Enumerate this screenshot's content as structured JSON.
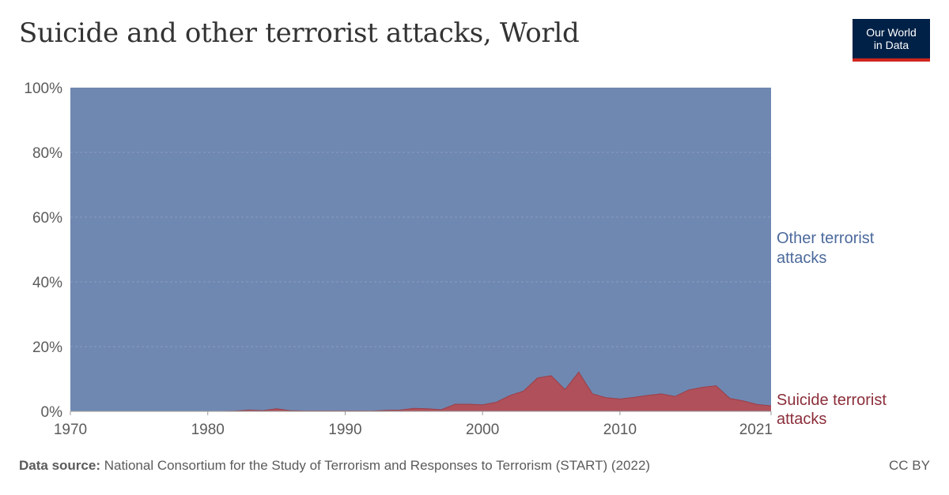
{
  "header": {
    "title": "Suicide and other terrorist attacks, World",
    "logo_line1": "Our World",
    "logo_line2": "in Data"
  },
  "footer": {
    "source_label": "Data source:",
    "source_text": "National Consortium for the Study of Terrorism and Responses to Terrorism (START) (2022)",
    "license": "CC BY"
  },
  "colors": {
    "other": "#6f88b1",
    "suicide": "#b0505a",
    "other_label": "#4c6a9c",
    "suicide_label": "#8b2e3a",
    "brand": "#002147",
    "brand_accent": "#ce261e"
  },
  "chart_data": {
    "type": "area",
    "stacked_percent": true,
    "title": "Suicide and other terrorist attacks, World",
    "xlabel": "",
    "ylabel": "",
    "xlim": [
      1970,
      2021
    ],
    "ylim": [
      0,
      100
    ],
    "y_ticks": [
      "0%",
      "20%",
      "40%",
      "60%",
      "80%",
      "100%"
    ],
    "x_ticks": [
      "1970",
      "1980",
      "1990",
      "2000",
      "2010",
      "2021"
    ],
    "grid": true,
    "legend_placement": "right, inline labels",
    "x": [
      1970,
      1971,
      1972,
      1973,
      1974,
      1975,
      1976,
      1977,
      1978,
      1979,
      1980,
      1981,
      1982,
      1983,
      1984,
      1985,
      1986,
      1987,
      1988,
      1989,
      1990,
      1991,
      1992,
      1993,
      1994,
      1995,
      1996,
      1997,
      1998,
      1999,
      2000,
      2001,
      2002,
      2003,
      2004,
      2005,
      2006,
      2007,
      2008,
      2009,
      2010,
      2011,
      2012,
      2013,
      2014,
      2015,
      2016,
      2017,
      2018,
      2019,
      2020,
      2021
    ],
    "series": [
      {
        "name": "Suicide terrorist attacks",
        "values": [
          0,
          0,
          0,
          0,
          0,
          0,
          0,
          0,
          0,
          0,
          0,
          0,
          0.1,
          0.4,
          0.2,
          0.8,
          0.2,
          0.1,
          0.1,
          0.1,
          0.1,
          0.1,
          0.1,
          0.3,
          0.4,
          0.9,
          0.8,
          0.5,
          2.2,
          2.2,
          2.0,
          2.8,
          4.9,
          6.3,
          10.3,
          11.0,
          6.7,
          12.1,
          5.4,
          4.2,
          3.8,
          4.3,
          4.9,
          5.4,
          4.6,
          6.6,
          7.4,
          7.9,
          4.0,
          3.2,
          2.1,
          1.7
        ]
      },
      {
        "name": "Other terrorist attacks",
        "values": [
          100,
          100,
          100,
          100,
          100,
          100,
          100,
          100,
          100,
          100,
          100,
          100,
          99.9,
          99.6,
          99.8,
          99.2,
          99.8,
          99.9,
          99.9,
          99.9,
          99.9,
          99.9,
          99.9,
          99.7,
          99.6,
          99.1,
          99.2,
          99.5,
          97.8,
          97.8,
          98.0,
          97.2,
          95.1,
          93.7,
          89.7,
          89.0,
          93.3,
          87.9,
          94.6,
          95.8,
          96.2,
          95.7,
          95.1,
          94.6,
          95.4,
          93.4,
          92.6,
          92.1,
          96.0,
          96.8,
          97.9,
          98.3
        ]
      }
    ],
    "series_labels": {
      "other": [
        "Other terrorist",
        "attacks"
      ],
      "suicide": [
        "Suicide terrorist",
        "attacks"
      ]
    }
  }
}
